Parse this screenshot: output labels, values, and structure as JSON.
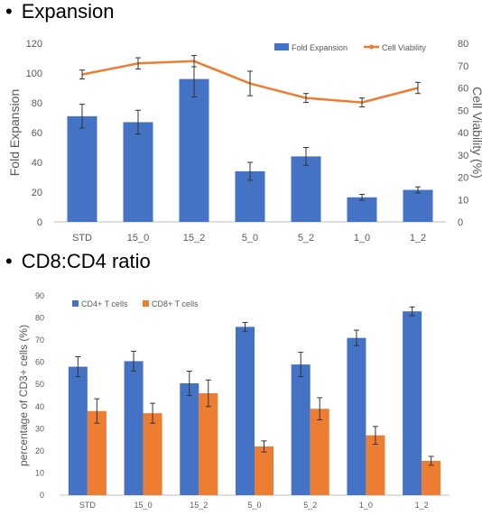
{
  "headings": {
    "chart1": "Expansion",
    "chart2": "CD8:CD4 ratio",
    "bullet": "•"
  },
  "chart_data": [
    {
      "type": "bar+line",
      "categories": [
        "STD",
        "15_0",
        "15_2",
        "5_0",
        "5_2",
        "1_0",
        "1_2"
      ],
      "ylabel": "Fold Expansion",
      "y2label": "Cell Viability (%)",
      "ylim": [
        0,
        120
      ],
      "y2lim": [
        0,
        80
      ],
      "yticks": [
        0,
        20,
        40,
        60,
        80,
        100,
        120
      ],
      "y2ticks": [
        0,
        10,
        20,
        30,
        40,
        50,
        60,
        70,
        80
      ],
      "legend_position": "top-right",
      "grid": false,
      "series": [
        {
          "name": "Fold Expansion",
          "type": "bar",
          "axis": "left",
          "color": "#4472C4",
          "values": [
            71,
            67,
            96,
            34,
            44,
            16.5,
            21.5
          ],
          "errors": [
            8,
            8,
            12,
            6,
            6,
            2,
            2
          ]
        },
        {
          "name": "Cell Viability",
          "type": "line",
          "axis": "right",
          "color": "#ED7D31",
          "values": [
            66,
            71,
            72,
            62,
            55.5,
            53.5,
            60
          ],
          "errors": [
            2,
            2.5,
            2.5,
            5.5,
            2,
            2,
            2.5
          ]
        }
      ]
    },
    {
      "type": "bar",
      "categories": [
        "STD",
        "15_0",
        "15_2",
        "5_0",
        "5_2",
        "1_0",
        "1_2"
      ],
      "ylabel": "percentage of CD3+ cells (%)",
      "ylim": [
        0,
        90
      ],
      "yticks": [
        0,
        10,
        20,
        30,
        40,
        50,
        60,
        70,
        80,
        90
      ],
      "legend_position": "top-left",
      "grid": false,
      "series": [
        {
          "name": "CD4+ T cells",
          "color": "#4472C4",
          "values": [
            58,
            60.5,
            50.5,
            76,
            59,
            71,
            83
          ],
          "errors": [
            4.5,
            4.5,
            5.5,
            2,
            5.5,
            3.5,
            2
          ]
        },
        {
          "name": "CD8+ T cells",
          "color": "#ED7D31",
          "values": [
            38,
            37,
            46,
            22,
            39,
            27,
            15.5
          ],
          "errors": [
            5.5,
            4.5,
            6,
            2.5,
            5,
            4,
            2
          ]
        }
      ]
    }
  ]
}
